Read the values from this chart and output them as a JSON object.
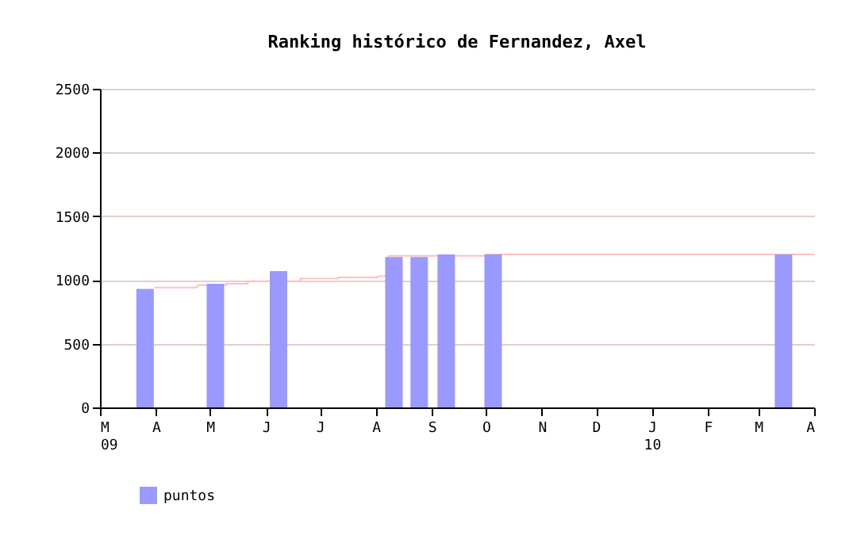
{
  "chart_data": {
    "type": "bar",
    "title": "Ranking histórico de Fernandez, Axel",
    "x": [
      "2009-03-26",
      "2009-05-04",
      "2009-06-08",
      "2009-08-11",
      "2009-08-25",
      "2009-09-09",
      "2009-10-05",
      "2010-03-15"
    ],
    "series": [
      {
        "name": "puntos",
        "color": "#9999ff",
        "values": [
          930,
          970,
          1070,
          1180,
          1180,
          1200,
          1200,
          1200
        ]
      },
      {
        "type": "step",
        "color": "#ffc0c0",
        "x": [
          "2009-03-31",
          "2009-04-24",
          "2009-05-10",
          "2009-05-22",
          "2009-06-20",
          "2009-07-11",
          "2009-08-02",
          "2009-08-08",
          "2009-09-05",
          "2009-10-01",
          "2010-04-01"
        ],
        "values": [
          940,
          960,
          970,
          990,
          1010,
          1020,
          1030,
          1190,
          1190,
          1200,
          1200
        ]
      }
    ],
    "xlim": [
      "2009-03-01",
      "2010-04-01"
    ],
    "xticks": [
      {
        "value": "2009-03-01",
        "label": "M\n09"
      },
      {
        "value": "2009-04-01",
        "label": "A"
      },
      {
        "value": "2009-05-01",
        "label": "M"
      },
      {
        "value": "2009-06-01",
        "label": "J"
      },
      {
        "value": "2009-07-01",
        "label": "J"
      },
      {
        "value": "2009-08-01",
        "label": "A"
      },
      {
        "value": "2009-09-01",
        "label": "S"
      },
      {
        "value": "2009-10-01",
        "label": "O"
      },
      {
        "value": "2009-11-01",
        "label": "N"
      },
      {
        "value": "2009-12-01",
        "label": "D"
      },
      {
        "value": "2010-01-01",
        "label": "J\n10"
      },
      {
        "value": "2010-02-01",
        "label": "F"
      },
      {
        "value": "2010-03-01",
        "label": "M"
      },
      {
        "value": "2010-04-01",
        "label": "A"
      }
    ],
    "ylim": [
      0,
      2500
    ],
    "yticks": [
      0,
      500,
      1000,
      1500,
      2000,
      2500
    ],
    "grid": "y",
    "legend": "bottom left"
  }
}
